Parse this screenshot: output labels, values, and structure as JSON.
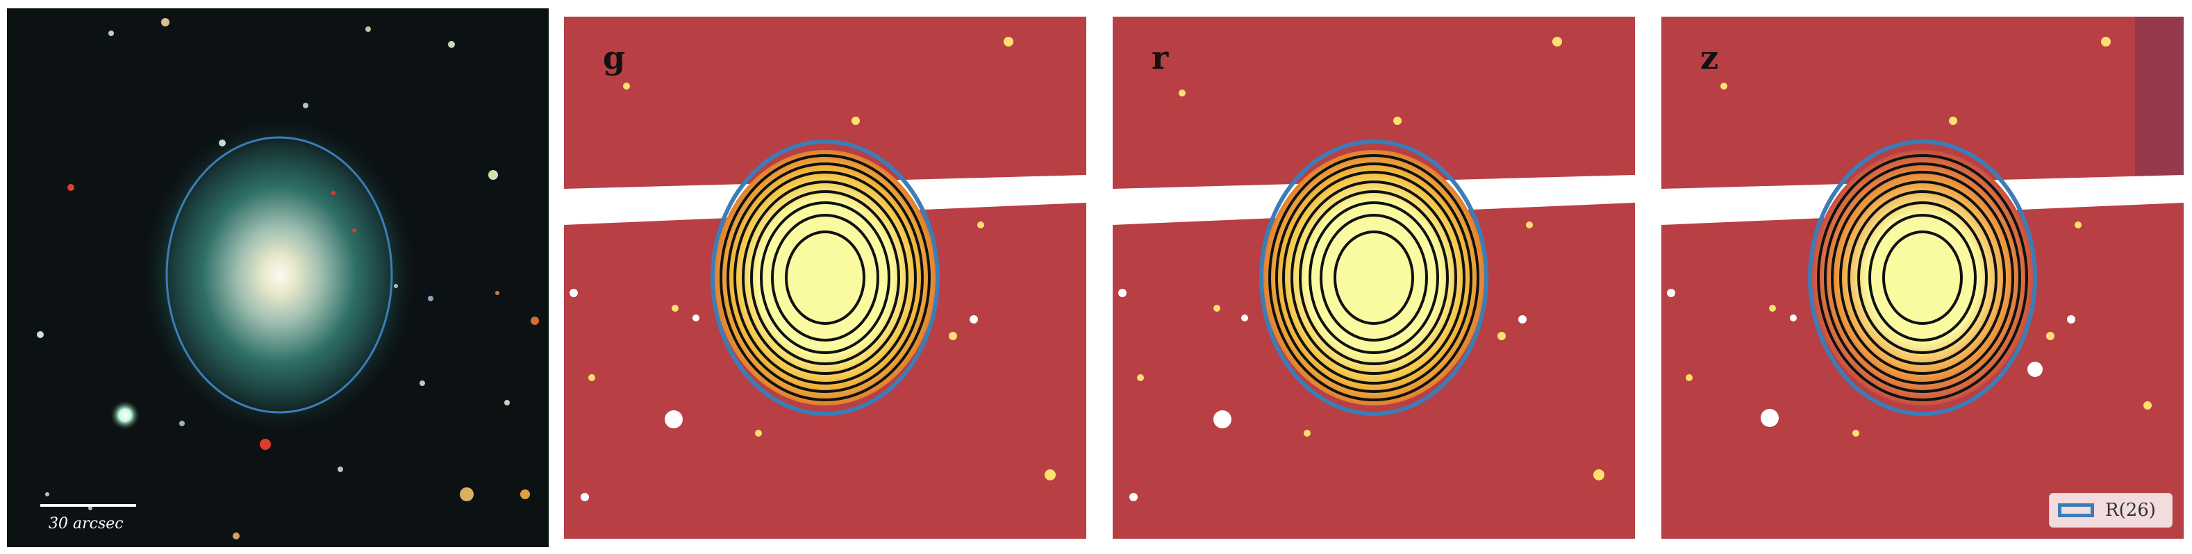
{
  "panels": {
    "color": {
      "scale_label": "30 arcsec"
    },
    "g": {
      "band": "g"
    },
    "r": {
      "band": "r"
    },
    "z": {
      "band": "z"
    }
  },
  "legend": {
    "label": "R(26)",
    "color": "#3c7db8"
  },
  "colors": {
    "ellipse": "#3c7db8",
    "background_bands": "#b23a48",
    "galaxy_core": "#fafaa0",
    "color_sky": "#0c1214"
  }
}
